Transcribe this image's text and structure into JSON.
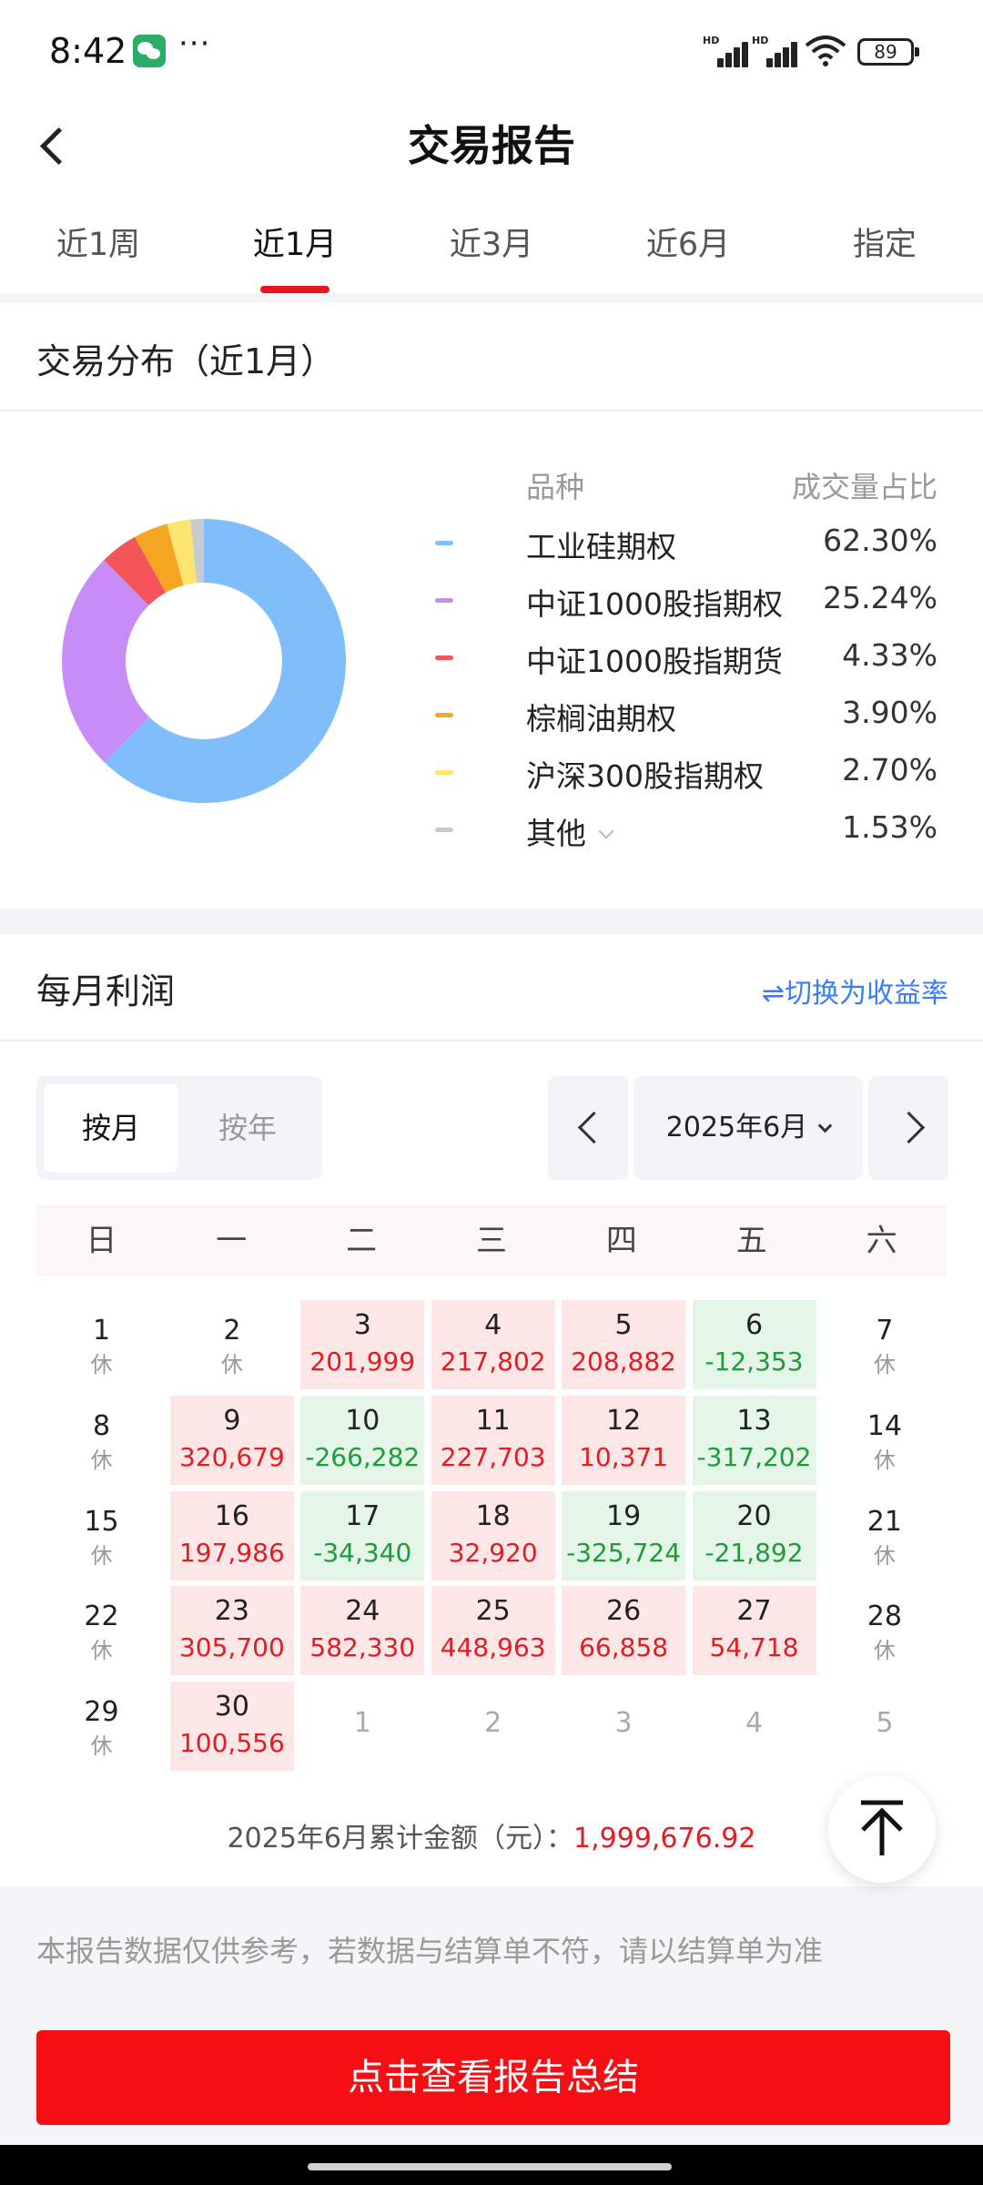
{
  "status_bar": {
    "time": "8:42",
    "battery": "89"
  },
  "header": {
    "title": "交易报告"
  },
  "tabs": [
    {
      "label": "近1周",
      "active": false
    },
    {
      "label": "近1月",
      "active": true
    },
    {
      "label": "近3月",
      "active": false
    },
    {
      "label": "近6月",
      "active": false
    },
    {
      "label": "指定",
      "active": false
    }
  ],
  "distribution": {
    "title": "交易分布（近1月）",
    "col_variety": "品种",
    "col_share": "成交量占比",
    "items": [
      {
        "name": "工业硅期权",
        "share": "62.30%",
        "value": 62.3,
        "color": "#7fbdfb"
      },
      {
        "name": "中证1000股指期权",
        "share": "25.24%",
        "value": 25.24,
        "color": "#c78cf5"
      },
      {
        "name": "中证1000股指期货",
        "share": "4.33%",
        "value": 4.33,
        "color": "#f4555a"
      },
      {
        "name": "棕榈油期权",
        "share": "3.90%",
        "value": 3.9,
        "color": "#f6a523"
      },
      {
        "name": "沪深300股指期权",
        "share": "2.70%",
        "value": 2.7,
        "color": "#fce56e"
      },
      {
        "name": "其他",
        "share": "1.53%",
        "value": 1.53,
        "color": "#c5c9d0"
      }
    ]
  },
  "monthly_profit": {
    "title": "每月利润",
    "switch_label": "⇌切换为收益率",
    "seg_month": "按月",
    "seg_year": "按年",
    "month": "2025年6月",
    "weekdays": [
      "日",
      "一",
      "二",
      "三",
      "四",
      "五",
      "六"
    ],
    "rest_label": "休",
    "weeks": [
      [
        {
          "day": "1",
          "type": "rest"
        },
        {
          "day": "2",
          "type": "rest"
        },
        {
          "day": "3",
          "type": "profit",
          "value": "201,999"
        },
        {
          "day": "4",
          "type": "profit",
          "value": "217,802"
        },
        {
          "day": "5",
          "type": "profit",
          "value": "208,882"
        },
        {
          "day": "6",
          "type": "loss",
          "value": "-12,353"
        },
        {
          "day": "7",
          "type": "rest"
        }
      ],
      [
        {
          "day": "8",
          "type": "rest"
        },
        {
          "day": "9",
          "type": "profit",
          "value": "320,679"
        },
        {
          "day": "10",
          "type": "loss",
          "value": "-266,282"
        },
        {
          "day": "11",
          "type": "profit",
          "value": "227,703"
        },
        {
          "day": "12",
          "type": "profit",
          "value": "10,371"
        },
        {
          "day": "13",
          "type": "loss",
          "value": "-317,202"
        },
        {
          "day": "14",
          "type": "rest"
        }
      ],
      [
        {
          "day": "15",
          "type": "rest"
        },
        {
          "day": "16",
          "type": "profit",
          "value": "197,986"
        },
        {
          "day": "17",
          "type": "loss",
          "value": "-34,340"
        },
        {
          "day": "18",
          "type": "profit",
          "value": "32,920"
        },
        {
          "day": "19",
          "type": "loss",
          "value": "-325,724"
        },
        {
          "day": "20",
          "type": "loss",
          "value": "-21,892"
        },
        {
          "day": "21",
          "type": "rest"
        }
      ],
      [
        {
          "day": "22",
          "type": "rest"
        },
        {
          "day": "23",
          "type": "profit",
          "value": "305,700"
        },
        {
          "day": "24",
          "type": "profit",
          "value": "582,330"
        },
        {
          "day": "25",
          "type": "profit",
          "value": "448,963"
        },
        {
          "day": "26",
          "type": "profit",
          "value": "66,858"
        },
        {
          "day": "27",
          "type": "profit",
          "value": "54,718"
        },
        {
          "day": "28",
          "type": "rest"
        }
      ],
      [
        {
          "day": "29",
          "type": "rest"
        },
        {
          "day": "30",
          "type": "profit",
          "value": "100,556"
        },
        {
          "day": "1",
          "type": "other"
        },
        {
          "day": "2",
          "type": "other"
        },
        {
          "day": "3",
          "type": "other"
        },
        {
          "day": "4",
          "type": "other"
        },
        {
          "day": "5",
          "type": "other"
        }
      ]
    ],
    "total_label": "2025年6月累计金额（元）：",
    "total_amount": "1,999,676.92"
  },
  "disclaimer": "本报告数据仅供参考，若数据与结算单不符，请以结算单为准",
  "summary_button": "点击查看报告总结"
}
